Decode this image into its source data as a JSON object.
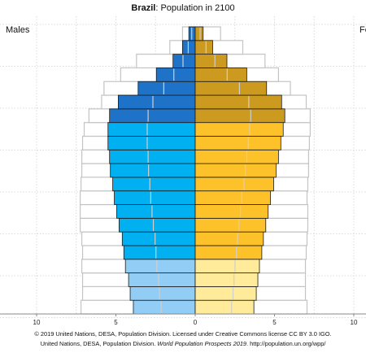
{
  "chart_data": {
    "type": "bar",
    "orientation": "horizontal-population-pyramid",
    "title": {
      "country": "Brazil",
      "rest": ": Population in 2100"
    },
    "left_label": "Males",
    "right_label": "Fe",
    "x_ticks": [
      10,
      5,
      0,
      5,
      10
    ],
    "xlim": [
      -10,
      10
    ],
    "grid": true,
    "series": [
      {
        "name": "Males",
        "values": [
          3.9,
          4.1,
          4.2,
          4.4,
          4.5,
          4.6,
          4.8,
          4.95,
          5.1,
          5.2,
          5.35,
          5.4,
          5.5,
          5.5,
          5.4,
          4.85,
          3.6,
          2.45,
          1.4,
          0.8,
          0.4
        ]
      },
      {
        "name": "Females",
        "values": [
          3.7,
          3.85,
          3.95,
          4.05,
          4.2,
          4.3,
          4.45,
          4.6,
          4.75,
          4.95,
          5.1,
          5.25,
          5.4,
          5.55,
          5.65,
          5.45,
          4.5,
          3.25,
          2.0,
          1.1,
          0.5
        ]
      }
    ],
    "reference_outline": {
      "males": [
        7.2,
        7.1,
        7.1,
        7.15,
        7.1,
        7.15,
        7.25,
        7.25,
        7.25,
        7.2,
        7.15,
        7.15,
        7.1,
        7.0,
        6.7,
        5.9,
        5.75,
        4.7,
        3.7,
        1.6,
        0.8
      ],
      "females": [
        7.05,
        6.95,
        6.95,
        6.95,
        7.0,
        7.05,
        7.1,
        7.1,
        7.05,
        7.1,
        7.15,
        7.15,
        7.2,
        7.25,
        7.25,
        7.0,
        6.0,
        5.25,
        4.4,
        3.0,
        1.6
      ]
    },
    "colors": {
      "male_old": "#1e73c8",
      "male_mid": "#00b0f0",
      "male_young": "#92cdf5",
      "female_old": "#cc9a1e",
      "female_mid": "#fdc12a",
      "female_young": "#ffeb99",
      "outline": "#c4c4c4",
      "grid": "#dcdcdc"
    },
    "band_ranges": {
      "young": [
        0,
        3
      ],
      "mid": [
        4,
        13
      ],
      "old": [
        14,
        20
      ]
    }
  },
  "footer": {
    "line1": "© 2019 United Nations, DESA, Population Division. Licensed under Creative Commons license CC BY 3.0 IGO.",
    "line2_pre": "United Nations, DESA, Population Division. ",
    "line2_italic": "World Population Prospects 2019",
    "line2_post": ". http://population.un.org/wpp/"
  }
}
